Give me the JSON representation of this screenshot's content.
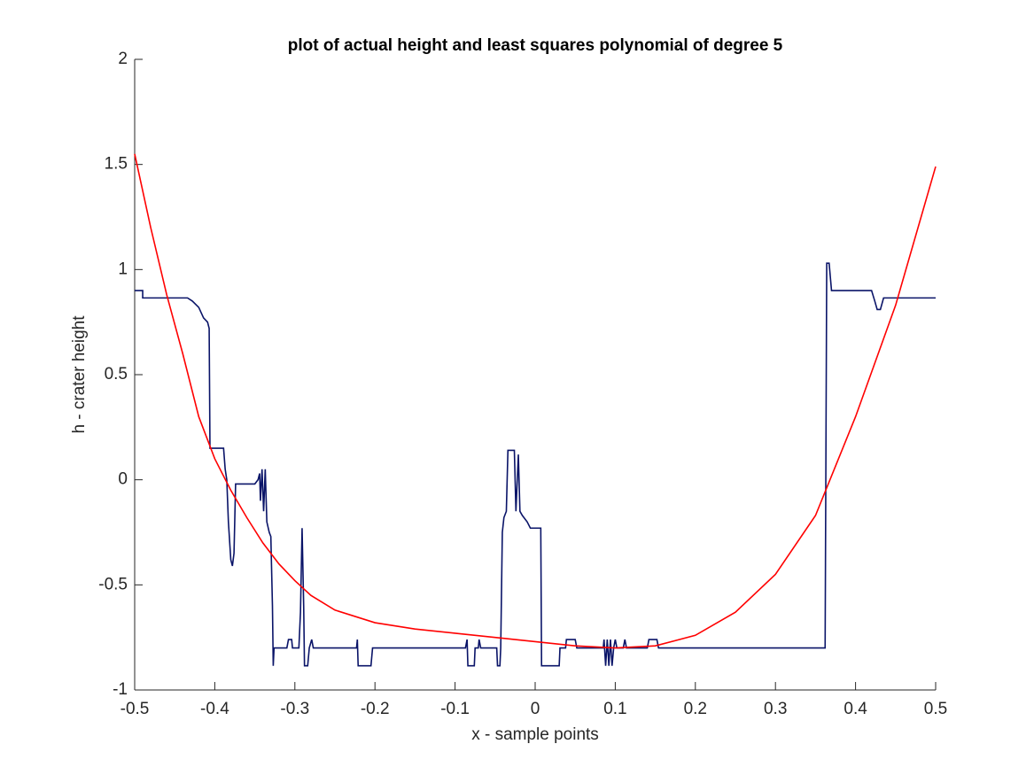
{
  "chart_data": {
    "type": "line",
    "title": "plot of actual height and least squares polynomial of degree 5",
    "xlabel": "x - sample points",
    "ylabel": "h - crater height",
    "xlim": [
      -0.5,
      0.5
    ],
    "ylim": [
      -1,
      2
    ],
    "xticks": [
      -0.5,
      -0.4,
      -0.3,
      -0.2,
      -0.1,
      0,
      0.1,
      0.2,
      0.3,
      0.4,
      0.5
    ],
    "yticks": [
      -1,
      -0.5,
      0,
      0.5,
      1,
      1.5,
      2
    ],
    "grid": false,
    "series": [
      {
        "color": "#0a1468",
        "x": [
          -0.5,
          -0.49,
          -0.49,
          -0.434,
          -0.428,
          -0.42,
          -0.414,
          -0.409,
          -0.407,
          -0.406,
          -0.389,
          -0.387,
          -0.385,
          -0.383,
          -0.38,
          -0.378,
          -0.376,
          -0.374,
          -0.35,
          -0.346,
          -0.344,
          -0.343,
          -0.341,
          -0.339,
          -0.337,
          -0.335,
          -0.332,
          -0.33,
          -0.328,
          -0.327,
          -0.326,
          -0.31,
          -0.308,
          -0.304,
          -0.303,
          -0.295,
          -0.293,
          -0.291,
          -0.289,
          -0.288,
          -0.284,
          -0.282,
          -0.279,
          -0.277,
          -0.223,
          -0.222,
          -0.221,
          -0.205,
          -0.203,
          -0.087,
          -0.085,
          -0.084,
          -0.076,
          -0.075,
          -0.071,
          -0.07,
          -0.068,
          -0.048,
          -0.047,
          -0.044,
          -0.043,
          -0.041,
          -0.039,
          -0.036,
          -0.034,
          -0.026,
          -0.024,
          -0.021,
          -0.019,
          -0.016,
          -0.01,
          -0.006,
          0.007,
          0.008,
          0.03,
          0.031,
          0.038,
          0.039,
          0.05,
          0.052,
          0.085,
          0.086,
          0.088,
          0.09,
          0.092,
          0.094,
          0.096,
          0.098,
          0.1,
          0.102,
          0.11,
          0.112,
          0.114,
          0.14,
          0.142,
          0.152,
          0.154,
          0.362,
          0.364,
          0.367,
          0.37,
          0.42,
          0.424,
          0.427,
          0.431,
          0.435,
          0.5
        ],
        "values": [
          0.9,
          0.9,
          0.865,
          0.865,
          0.85,
          0.82,
          0.77,
          0.75,
          0.72,
          0.15,
          0.15,
          0.05,
          0.0,
          -0.2,
          -0.38,
          -0.41,
          -0.35,
          -0.02,
          -0.02,
          0.0,
          0.03,
          -0.1,
          0.05,
          -0.15,
          0.05,
          -0.2,
          -0.25,
          -0.27,
          -0.6,
          -0.885,
          -0.8,
          -0.8,
          -0.76,
          -0.76,
          -0.8,
          -0.8,
          -0.63,
          -0.23,
          -0.6,
          -0.885,
          -0.885,
          -0.8,
          -0.76,
          -0.8,
          -0.8,
          -0.76,
          -0.885,
          -0.885,
          -0.8,
          -0.8,
          -0.76,
          -0.885,
          -0.885,
          -0.8,
          -0.8,
          -0.76,
          -0.8,
          -0.8,
          -0.885,
          -0.885,
          -0.8,
          -0.25,
          -0.18,
          -0.15,
          0.14,
          0.14,
          -0.15,
          0.12,
          -0.15,
          -0.17,
          -0.2,
          -0.23,
          -0.23,
          -0.885,
          -0.885,
          -0.8,
          -0.8,
          -0.76,
          -0.76,
          -0.8,
          -0.8,
          -0.76,
          -0.885,
          -0.76,
          -0.885,
          -0.76,
          -0.885,
          -0.8,
          -0.76,
          -0.8,
          -0.8,
          -0.76,
          -0.8,
          -0.8,
          -0.76,
          -0.76,
          -0.8,
          -0.8,
          1.03,
          1.03,
          0.9,
          0.9,
          0.85,
          0.81,
          0.81,
          0.865,
          0.865
        ]
      },
      {
        "color": "#ff0000",
        "x": [
          -0.5,
          -0.48,
          -0.46,
          -0.44,
          -0.42,
          -0.4,
          -0.38,
          -0.36,
          -0.34,
          -0.32,
          -0.3,
          -0.28,
          -0.25,
          -0.2,
          -0.15,
          -0.1,
          -0.05,
          0,
          0.05,
          0.1,
          0.15,
          0.2,
          0.25,
          0.3,
          0.35,
          0.4,
          0.45,
          0.5
        ],
        "values": [
          1.55,
          1.2,
          0.88,
          0.6,
          0.3,
          0.1,
          -0.05,
          -0.18,
          -0.3,
          -0.4,
          -0.48,
          -0.55,
          -0.62,
          -0.68,
          -0.71,
          -0.73,
          -0.75,
          -0.77,
          -0.79,
          -0.8,
          -0.79,
          -0.74,
          -0.63,
          -0.45,
          -0.17,
          0.3,
          0.83,
          1.49
        ]
      }
    ]
  }
}
